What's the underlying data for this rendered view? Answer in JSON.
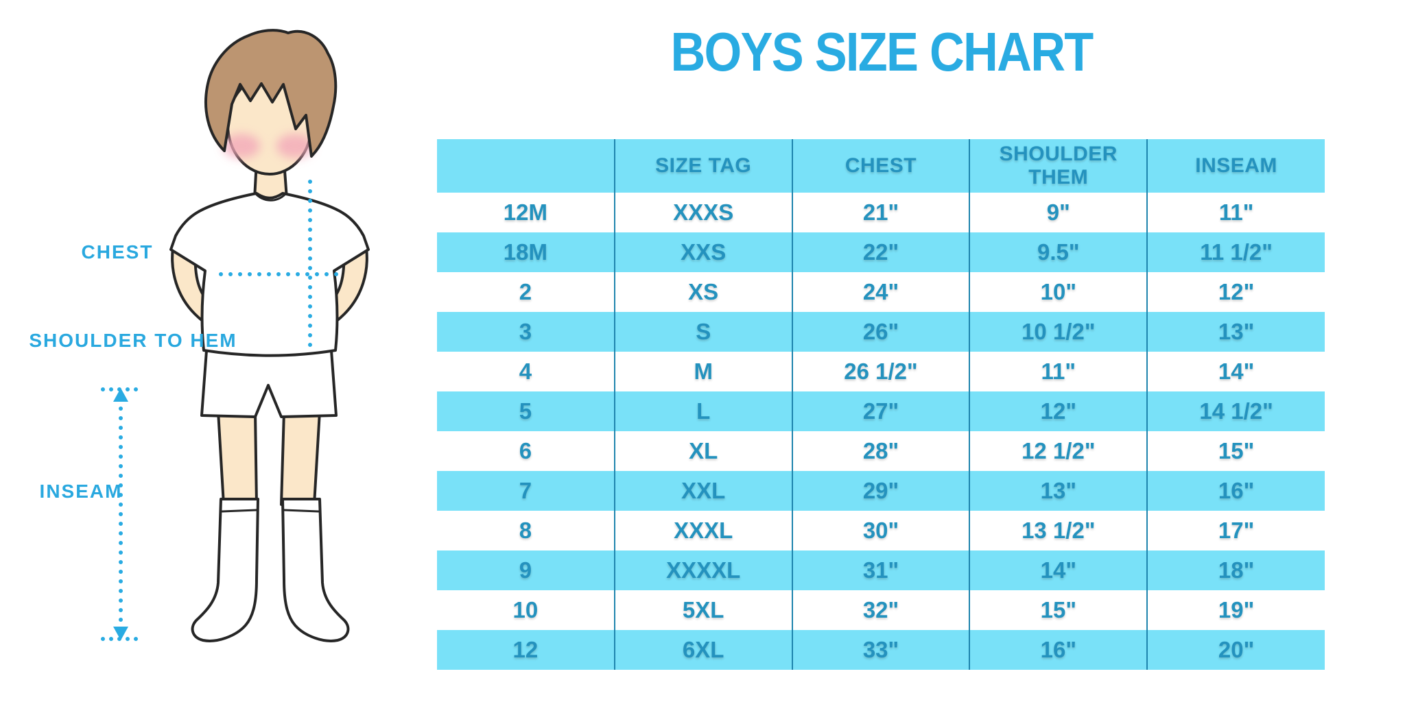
{
  "title": "BOYS SIZE CHART",
  "measurement_labels": {
    "chest": "CHEST",
    "shoulder_to_hem": "SHOULDER TO HEM",
    "inseam": "INSEAM"
  },
  "chart_data": {
    "type": "table",
    "title": "BOYS SIZE CHART",
    "columns": [
      "",
      "SIZE TAG",
      "CHEST",
      "SHOULDER THEM",
      "INSEAM"
    ],
    "rows": [
      [
        "12M",
        "XXXS",
        "21\"",
        "9\"",
        "11\""
      ],
      [
        "18M",
        "XXS",
        "22\"",
        "9.5\"",
        "11 1/2\""
      ],
      [
        "2",
        "XS",
        "24\"",
        "10\"",
        "12\""
      ],
      [
        "3",
        "S",
        "26\"",
        "10 1/2\"",
        "13\""
      ],
      [
        "4",
        "M",
        "26 1/2\"",
        "11\"",
        "14\""
      ],
      [
        "5",
        "L",
        "27\"",
        "12\"",
        "14 1/2\""
      ],
      [
        "6",
        "XL",
        "28\"",
        "12 1/2\"",
        "15\""
      ],
      [
        "7",
        "XXL",
        "29\"",
        "13\"",
        "16\""
      ],
      [
        "8",
        "XXXL",
        "30\"",
        "13 1/2\"",
        "17\""
      ],
      [
        "9",
        "XXXXL",
        "31\"",
        "14\"",
        "18\""
      ],
      [
        "10",
        "5XL",
        "32\"",
        "15\"",
        "19\""
      ],
      [
        "12",
        "6XL",
        "33\"",
        "16\"",
        "20\""
      ]
    ]
  },
  "colors": {
    "title_blue": "#29ABE2",
    "label_blue": "#29A8DF",
    "band_cyan": "#79E1F8",
    "cell_text": "#2492BE",
    "column_line": "#1E84AD",
    "dotted_line": "#29ABE2",
    "skin": "#FBE7C9",
    "hair": "#BC9571",
    "blush": "#F3A9BA"
  }
}
